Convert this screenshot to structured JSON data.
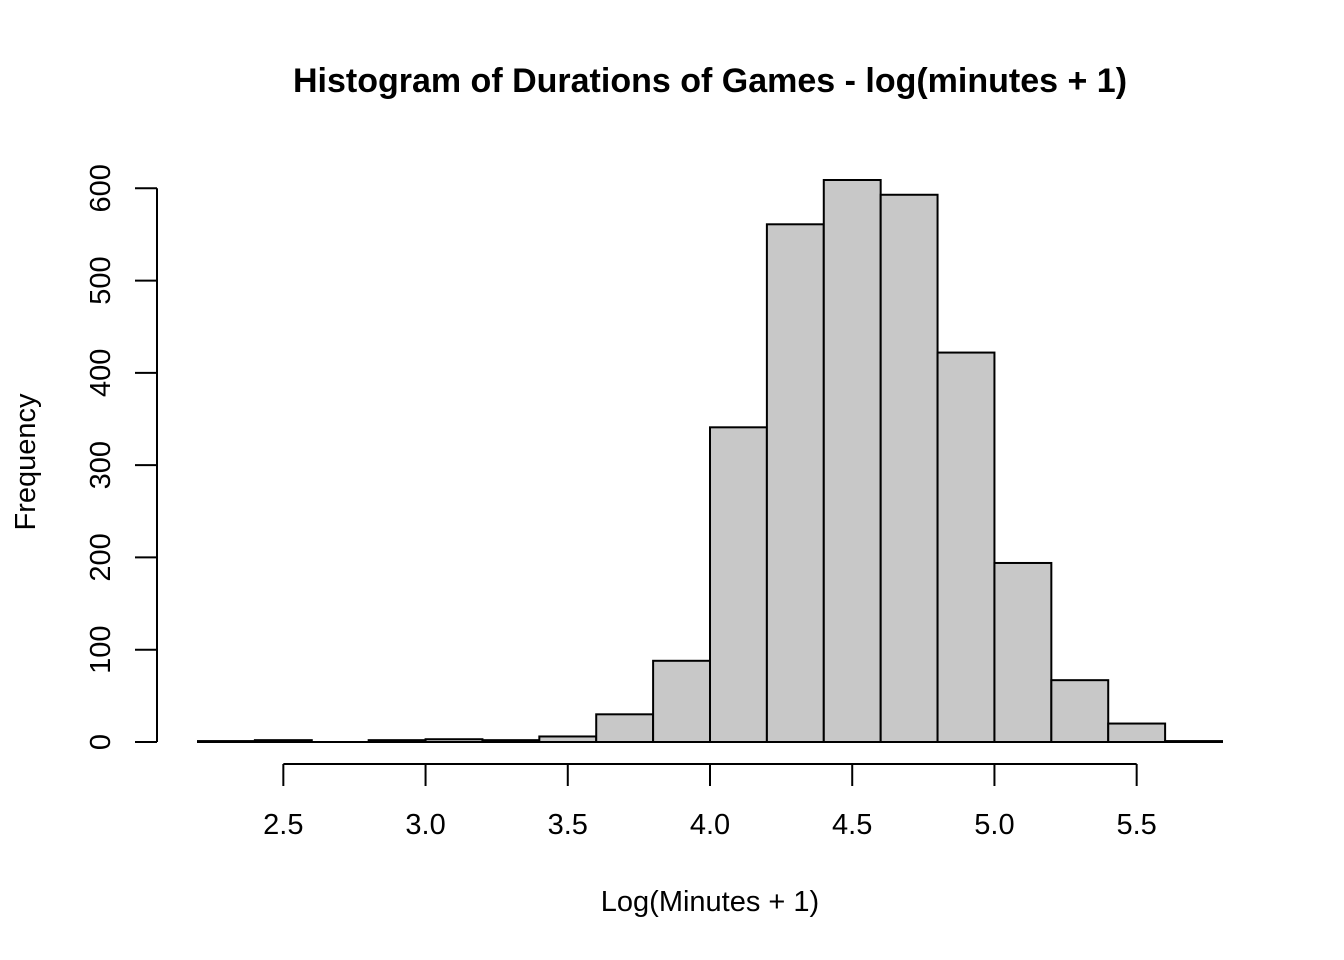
{
  "chart_data": {
    "type": "bar",
    "title": "Histogram of Durations of Games - log(minutes + 1)",
    "xlabel": "Log(Minutes + 1)",
    "ylabel": "Frequency",
    "bin_width": 0.2,
    "bins": [
      {
        "start": 2.2,
        "end": 2.4,
        "count": 1
      },
      {
        "start": 2.4,
        "end": 2.6,
        "count": 2
      },
      {
        "start": 2.6,
        "end": 2.8,
        "count": 0
      },
      {
        "start": 2.8,
        "end": 3.0,
        "count": 2
      },
      {
        "start": 3.0,
        "end": 3.2,
        "count": 3
      },
      {
        "start": 3.2,
        "end": 3.4,
        "count": 2
      },
      {
        "start": 3.4,
        "end": 3.6,
        "count": 6
      },
      {
        "start": 3.6,
        "end": 3.8,
        "count": 30
      },
      {
        "start": 3.8,
        "end": 4.0,
        "count": 88
      },
      {
        "start": 4.0,
        "end": 4.2,
        "count": 341
      },
      {
        "start": 4.2,
        "end": 4.4,
        "count": 561
      },
      {
        "start": 4.4,
        "end": 4.6,
        "count": 609
      },
      {
        "start": 4.6,
        "end": 4.8,
        "count": 593
      },
      {
        "start": 4.8,
        "end": 5.0,
        "count": 422
      },
      {
        "start": 5.0,
        "end": 5.2,
        "count": 194
      },
      {
        "start": 5.2,
        "end": 5.4,
        "count": 67
      },
      {
        "start": 5.4,
        "end": 5.6,
        "count": 20
      },
      {
        "start": 5.6,
        "end": 5.8,
        "count": 1
      }
    ],
    "xlim": [
      2.2,
      5.8
    ],
    "ylim": [
      0,
      609
    ],
    "x_ticks": [
      2.5,
      3.0,
      3.5,
      4.0,
      4.5,
      5.0,
      5.5
    ],
    "x_tick_labels": [
      "2.5",
      "3.0",
      "3.5",
      "4.0",
      "4.5",
      "5.0",
      "5.5"
    ],
    "y_ticks": [
      0,
      100,
      200,
      300,
      400,
      500,
      600
    ],
    "y_tick_labels": [
      "0",
      "100",
      "200",
      "300",
      "400",
      "500",
      "600"
    ],
    "grid": false,
    "legend": "none",
    "colors": {
      "bar_fill": "#c8c8c8",
      "bar_stroke": "#000000",
      "axis": "#000000"
    }
  }
}
